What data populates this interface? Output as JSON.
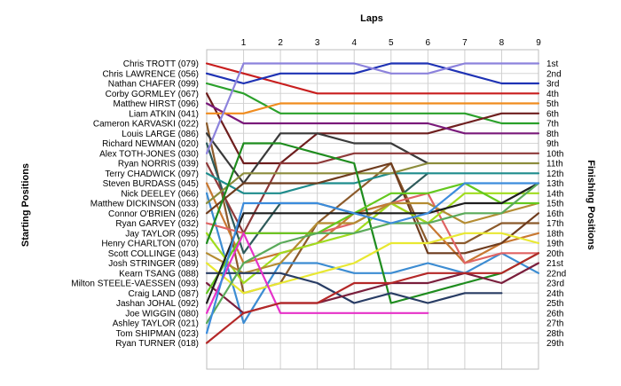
{
  "chart_data": {
    "type": "line",
    "title": "Laps",
    "ylabel_left": "Starting Positions",
    "ylabel_right": "Finishing Positions",
    "laps": [
      1,
      2,
      3,
      4,
      5,
      6,
      7,
      8,
      9
    ],
    "starting_grid": [
      "Chris TROTT (079)",
      "Chris LAWRENCE (056)",
      "Nathan CHAFER (099)",
      "Corby GORMLEY (067)",
      "Matthew HIRST (096)",
      "Liam ATKIN (041)",
      "Cameron KARVASKI (022)",
      "Louis LARGE (086)",
      "Richard NEWMAN (020)",
      "Alex TOTH-JONES (030)",
      "Ryan NORRIS (039)",
      "Terry CHADWICK (097)",
      "Steven BURDASS (045)",
      "Nick DEELEY (066)",
      "Matthew DICKINSON (033)",
      "Connor O'BRIEN (026)",
      "Ryan GARVEY (032)",
      "Jay TAYLOR (095)",
      "Henry CHARLTON (070)",
      "Scott COLLINGE (043)",
      "Josh STRINGER (089)",
      "Kearn TSANG (088)",
      "Milton STEELE-VAESSEN (093)",
      "Craig LAND (087)",
      "Jashan JOHAL (092)",
      "Joe WIGGIN (080)",
      "Ashley TAYLOR (021)",
      "Tom SHIPMAN (023)",
      "Ryan TURNER (018)"
    ],
    "finishing_labels": [
      "1st",
      "2nd",
      "3rd",
      "4th",
      "5th",
      "6th",
      "7th",
      "8th",
      "9th",
      "10th",
      "11th",
      "12th",
      "13th",
      "14th",
      "15th",
      "16th",
      "17th",
      "18th",
      "19th",
      "20th",
      "21st",
      "22nd",
      "23rd",
      "24th",
      "25th",
      "26th",
      "27th",
      "28th",
      "29th"
    ],
    "series": [
      {
        "color": "#c81e1e",
        "positions": [
          1,
          2,
          3,
          4,
          4,
          4,
          4,
          4,
          4,
          4
        ]
      },
      {
        "color": "#1e32b4",
        "positions": [
          2,
          3,
          2,
          2,
          2,
          1,
          1,
          2,
          3,
          3
        ]
      },
      {
        "color": "#2aa02a",
        "positions": [
          3,
          4,
          6,
          6,
          6,
          6,
          6,
          6,
          7,
          7
        ]
      },
      {
        "color": "#6e1e1e",
        "positions": [
          4,
          11,
          11,
          8,
          8,
          8,
          8,
          7,
          6,
          6
        ]
      },
      {
        "color": "#7a1a7a",
        "positions": [
          5,
          7,
          7,
          7,
          7,
          7,
          7,
          8,
          8,
          8
        ]
      },
      {
        "color": "#f08c1e",
        "positions": [
          6,
          6,
          5,
          5,
          5,
          5,
          5,
          5,
          5,
          5
        ]
      },
      {
        "color": "#8b5a2b",
        "positions": [
          7,
          24,
          23,
          17,
          14,
          11,
          19,
          19,
          17,
          17
        ]
      },
      {
        "color": "#3a3a3a",
        "positions": [
          8,
          13,
          8,
          8,
          9,
          9,
          11
        ]
      },
      {
        "color": "#2e5a5a",
        "positions": [
          9,
          20,
          15,
          15,
          16,
          15,
          12
        ]
      },
      {
        "color": "#8c82dc",
        "positions": [
          10,
          1,
          1,
          1,
          1,
          2,
          2,
          1,
          1,
          1
        ]
      },
      {
        "color": "#8e3a3a",
        "positions": [
          11,
          18,
          11,
          11,
          10,
          10,
          10,
          10,
          10,
          10
        ]
      },
      {
        "color": "#1e8c8c",
        "positions": [
          12,
          14,
          14,
          13,
          13,
          12,
          12,
          12,
          12,
          12
        ]
      },
      {
        "color": "#c87832",
        "positions": [
          13,
          21,
          20,
          19,
          16,
          15,
          17,
          21,
          19,
          18
        ]
      },
      {
        "color": "#3c8cd2",
        "positions": [
          14,
          27,
          21,
          21,
          22,
          22,
          21,
          22,
          20,
          22
        ]
      },
      {
        "color": "#8c8c3c",
        "positions": [
          15,
          12,
          12,
          12,
          12,
          12,
          11,
          11,
          11,
          11
        ]
      },
      {
        "color": "#6e3c1e",
        "positions": [
          16,
          13,
          13,
          13,
          12,
          11,
          20,
          20,
          19,
          16
        ]
      },
      {
        "color": "#e06464",
        "positions": [
          17,
          18,
          18,
          18,
          17,
          15,
          14,
          21,
          20,
          20
        ]
      },
      {
        "color": "#a0dc1e",
        "positions": [
          18,
          23,
          20,
          19,
          18,
          15,
          17,
          14,
          14,
          14
        ]
      },
      {
        "color": "#1e8c1e",
        "positions": [
          19,
          9,
          9,
          10,
          11,
          25,
          24,
          23,
          22,
          20
        ]
      },
      {
        "color": "#b48c32",
        "positions": [
          20,
          22,
          21,
          17,
          17,
          15,
          15,
          17,
          16,
          15
        ]
      },
      {
        "color": "#e8e832",
        "positions": [
          21,
          24,
          23,
          22,
          21,
          19,
          19,
          18,
          18,
          19
        ]
      },
      {
        "color": "#283c64",
        "positions": [
          22,
          22,
          22,
          23,
          25,
          24,
          25,
          24,
          24
        ]
      },
      {
        "color": "#7a1e3c",
        "positions": [
          23,
          26,
          25,
          25,
          24,
          23,
          23,
          22,
          23,
          21
        ]
      },
      {
        "color": "#64c81e",
        "positions": [
          24,
          18,
          18,
          18,
          16,
          14,
          14,
          13,
          15,
          15
        ]
      },
      {
        "color": "#1e1e1e",
        "positions": [
          25,
          16,
          16,
          16,
          16,
          16,
          16,
          15,
          15,
          13
        ]
      },
      {
        "color": "#e632c8",
        "positions": [
          26,
          18,
          26,
          26,
          26,
          26,
          26
        ]
      },
      {
        "color": "#5aaa5a",
        "positions": [
          27,
          21,
          19,
          18,
          18,
          17,
          17,
          16,
          16,
          13
        ]
      },
      {
        "color": "#3c8cdc",
        "positions": [
          28,
          15,
          15,
          15,
          16,
          17,
          16,
          13,
          13,
          13
        ]
      },
      {
        "color": "#b42828",
        "positions": [
          29,
          26,
          25,
          25,
          23,
          23,
          22,
          22,
          22,
          20
        ]
      }
    ]
  }
}
